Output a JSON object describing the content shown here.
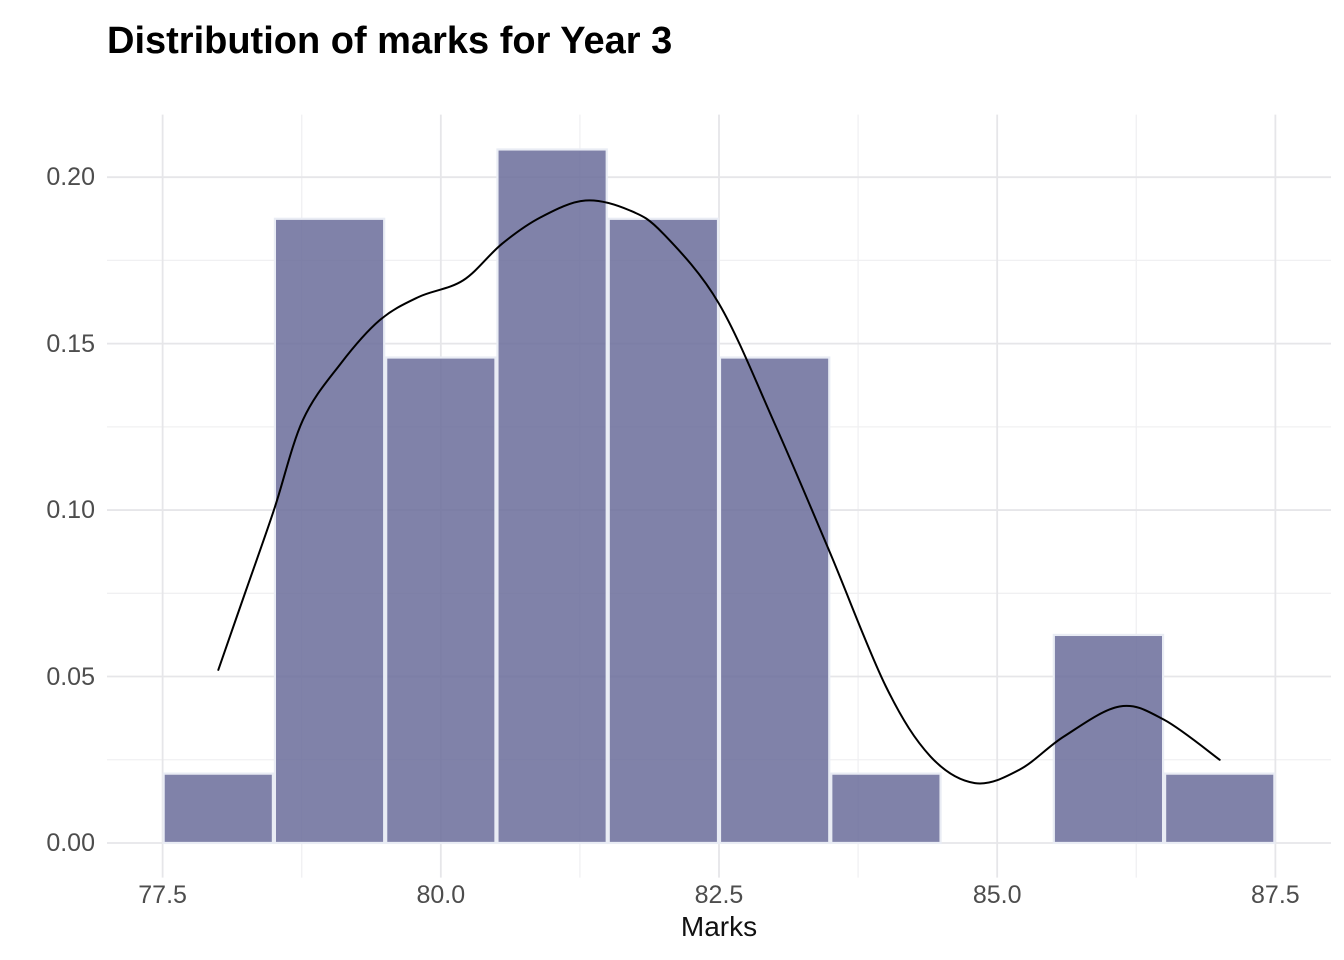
{
  "chart_data": {
    "type": "bar",
    "subtype": "histogram-with-density-overlay",
    "title": "Distribution of marks for Year 3",
    "xlabel": "Marks",
    "ylabel": "",
    "legend": false,
    "grid": true,
    "xlim": [
      77.0,
      88.0
    ],
    "ylim": [
      -0.0104,
      0.2188
    ],
    "x_ticks": [
      {
        "value": 77.5,
        "label": "77.5"
      },
      {
        "value": 80.0,
        "label": "80.0"
      },
      {
        "value": 82.5,
        "label": "82.5"
      },
      {
        "value": 85.0,
        "label": "85.0"
      },
      {
        "value": 87.5,
        "label": "87.5"
      }
    ],
    "x_minor_ticks": [
      78.75,
      81.25,
      83.75,
      86.25
    ],
    "y_ticks": [
      {
        "value": 0.0,
        "label": "0.00"
      },
      {
        "value": 0.05,
        "label": "0.05"
      },
      {
        "value": 0.1,
        "label": "0.10"
      },
      {
        "value": 0.15,
        "label": "0.15"
      },
      {
        "value": 0.2,
        "label": "0.20"
      }
    ],
    "y_minor_ticks": [
      0.025,
      0.075,
      0.125,
      0.175
    ],
    "bins": [
      {
        "from": 77.5,
        "to": 78.5,
        "density": 0.02083
      },
      {
        "from": 78.5,
        "to": 79.5,
        "density": 0.1875
      },
      {
        "from": 79.5,
        "to": 80.5,
        "density": 0.14583
      },
      {
        "from": 80.5,
        "to": 81.5,
        "density": 0.20833
      },
      {
        "from": 81.5,
        "to": 82.5,
        "density": 0.1875
      },
      {
        "from": 82.5,
        "to": 83.5,
        "density": 0.14583
      },
      {
        "from": 83.5,
        "to": 84.5,
        "density": 0.02083
      },
      {
        "from": 84.5,
        "to": 85.5,
        "density": 0.0
      },
      {
        "from": 85.5,
        "to": 86.5,
        "density": 0.0625
      },
      {
        "from": 86.5,
        "to": 87.5,
        "density": 0.02083
      }
    ],
    "density_curve": [
      [
        78.0,
        0.052
      ],
      [
        78.25,
        0.076
      ],
      [
        78.5,
        0.1
      ],
      [
        78.76,
        0.127
      ],
      [
        79.1,
        0.144
      ],
      [
        79.45,
        0.157
      ],
      [
        79.8,
        0.164
      ],
      [
        80.2,
        0.169
      ],
      [
        80.55,
        0.18
      ],
      [
        80.9,
        0.188
      ],
      [
        81.3,
        0.193
      ],
      [
        81.7,
        0.19
      ],
      [
        82.0,
        0.183
      ],
      [
        82.5,
        0.162
      ],
      [
        83.0,
        0.126
      ],
      [
        83.5,
        0.087
      ],
      [
        84.0,
        0.047
      ],
      [
        84.4,
        0.026
      ],
      [
        84.8,
        0.018
      ],
      [
        85.2,
        0.022
      ],
      [
        85.6,
        0.032
      ],
      [
        86.1,
        0.041
      ],
      [
        86.5,
        0.037
      ],
      [
        87.0,
        0.025
      ]
    ],
    "colors": {
      "background": "#ffffff",
      "bar_fill": "rgba(106,108,154,0.85)",
      "bar_stroke": "#e9ecf4",
      "density_line": "#000000",
      "grid_major": "#e6e6e9",
      "grid_minor": "#f0f0f2",
      "axis_text": "#4d4d4d",
      "axis_title": "#111111",
      "title": "#000000"
    }
  }
}
